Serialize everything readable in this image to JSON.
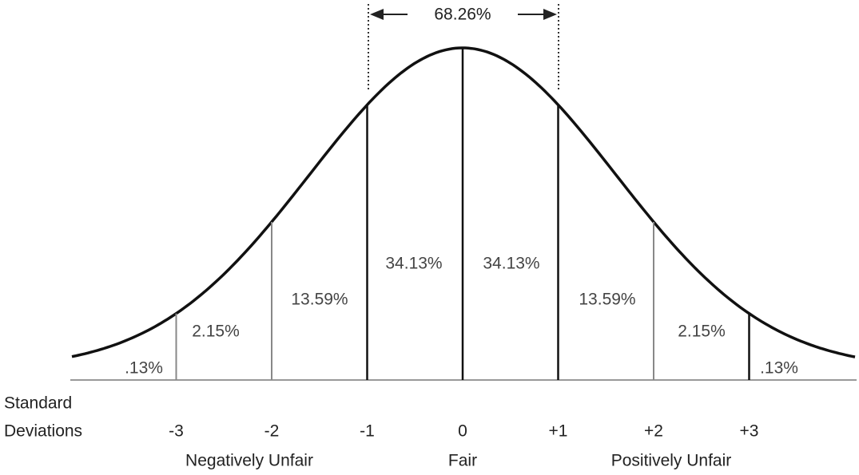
{
  "bracket_label": "68.26%",
  "regions": [
    ".13%",
    "2.15%",
    "13.59%",
    "34.13%",
    "34.13%",
    "13.59%",
    "2.15%",
    ".13%"
  ],
  "axis": {
    "label_lines": [
      "Standard",
      "Deviations"
    ],
    "ticks": [
      "-3",
      "-2",
      "-1",
      "0",
      "+1",
      "+2",
      "+3"
    ]
  },
  "zones": [
    "Negatively Unfair",
    "Fair",
    "Positively Unfair"
  ]
}
